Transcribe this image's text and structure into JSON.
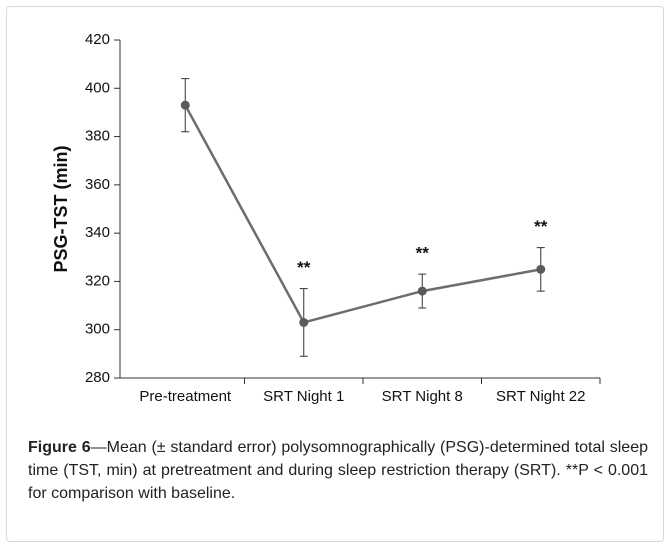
{
  "chart_data": {
    "type": "line",
    "ylabel": "PSG-TST (min)",
    "categories": [
      "Pre-treatment",
      "SRT Night 1",
      "SRT Night 8",
      "SRT Night 22"
    ],
    "values": [
      393,
      303,
      316,
      325
    ],
    "errors": [
      11,
      14,
      7,
      9
    ],
    "annotations": [
      null,
      "**",
      "**",
      "**"
    ],
    "color": "#6d6d6d",
    "ylim": [
      280,
      420
    ],
    "yticks": [
      280,
      300,
      320,
      340,
      360,
      380,
      400,
      420
    ]
  },
  "caption": {
    "label": "Figure 6",
    "text": "—Mean (± standard error) polysomnographically (PSG)-determined total sleep time (TST, min) at pretreatment and during sleep restriction therapy (SRT). **P < 0.001 for comparison with baseline."
  }
}
